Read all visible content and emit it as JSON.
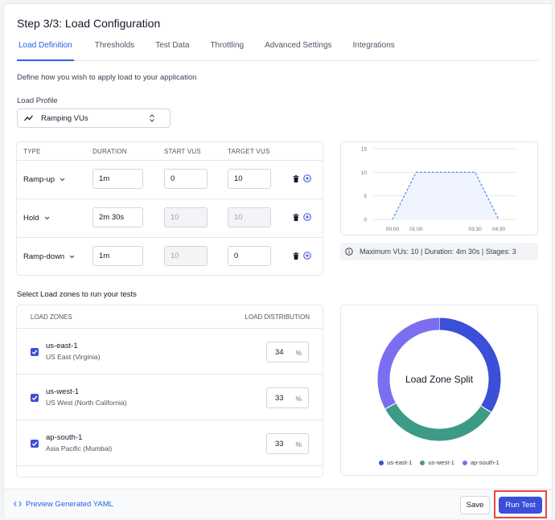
{
  "header": {
    "title": "Step 3/3: Load Configuration"
  },
  "tabs": [
    {
      "label": "Load Definition",
      "active": true
    },
    {
      "label": "Thresholds"
    },
    {
      "label": "Test Data"
    },
    {
      "label": "Throttling"
    },
    {
      "label": "Advanced Settings"
    },
    {
      "label": "Integrations"
    }
  ],
  "description": "Define how you wish to apply load to your application",
  "load_profile": {
    "label": "Load Profile",
    "value": "Ramping VUs",
    "icon": "trend-icon"
  },
  "stages": {
    "headers": [
      "TYPE",
      "DURATION",
      "START VUS",
      "TARGET VUS"
    ],
    "rows": [
      {
        "type": "Ramp-up",
        "duration": "1m",
        "start": "0",
        "target": "10",
        "start_disabled": false,
        "target_disabled": false
      },
      {
        "type": "Hold",
        "duration": "2m 30s",
        "start": "10",
        "target": "10",
        "start_disabled": true,
        "target_disabled": true
      },
      {
        "type": "Ramp-down",
        "duration": "1m",
        "start": "10",
        "target": "0",
        "start_disabled": true,
        "target_disabled": false
      }
    ]
  },
  "chart_data": [
    {
      "type": "area",
      "x": [
        "00:00",
        "01:00",
        "03:30",
        "04:30"
      ],
      "y": [
        0,
        10,
        10,
        0
      ],
      "ylim": [
        0,
        15
      ],
      "yticks": [
        0,
        5,
        10,
        15
      ],
      "grid": true,
      "line_style": "dashed",
      "color": "#3b82f6",
      "fill": "#eff4fe"
    },
    {
      "type": "pie",
      "donut": true,
      "title": "Load Zone Split",
      "labels": [
        "us-east-1",
        "us-west-1",
        "ap-south-1"
      ],
      "values": [
        34,
        33,
        33
      ],
      "colors": [
        "#3b4fd8",
        "#3d9a86",
        "#7c6ef0"
      ],
      "legend": "bottom"
    }
  ],
  "summary": "Maximum VUs: 10 | Duration: 4m 30s | Stages: 3",
  "zones": {
    "title": "Select Load zones to run your tests",
    "headers": [
      "LOAD ZONES",
      "LOAD DISTRIBUTION"
    ],
    "rows": [
      {
        "name": "us-east-1",
        "region": "US East (Virginia)",
        "percent": "34",
        "checked": true
      },
      {
        "name": "us-west-1",
        "region": "US West (North California)",
        "percent": "33",
        "checked": true
      },
      {
        "name": "ap-south-1",
        "region": "Asia Pacific (Mumbai)",
        "percent": "33",
        "checked": true
      }
    ],
    "unit": "%"
  },
  "footer": {
    "yaml_link": "Preview Generated YAML",
    "save": "Save",
    "run": "Run Test"
  },
  "colors": {
    "accent": "#3b4fd8",
    "link": "#2563eb",
    "highlight": "#ef4444"
  }
}
